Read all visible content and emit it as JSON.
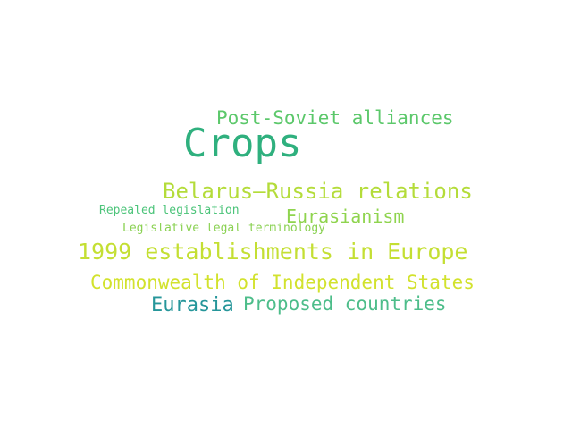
{
  "words": [
    {
      "key": "crops",
      "text": "Crops",
      "color": "#2fb07e"
    },
    {
      "key": "post",
      "text": "Post-Soviet alliances",
      "color": "#5cc86b"
    },
    {
      "key": "belarus",
      "text": "Belarus–Russia relations",
      "color": "#b4dc3a"
    },
    {
      "key": "repealed",
      "text": "Repealed legislation",
      "color": "#4cc47a"
    },
    {
      "key": "eurasianism",
      "text": "Eurasianism",
      "color": "#8fd44e"
    },
    {
      "key": "legislative",
      "text": "Legislative legal terminology",
      "color": "#8ad152"
    },
    {
      "key": "e1999",
      "text": "1999 establishments in Europe",
      "color": "#c4df33"
    },
    {
      "key": "cis",
      "text": "Commonwealth of Independent States",
      "color": "#d2e22d"
    },
    {
      "key": "eurasia",
      "text": "Eurasia",
      "color": "#26969a"
    },
    {
      "key": "proposed",
      "text": "Proposed countries",
      "color": "#4dbd8a"
    }
  ]
}
